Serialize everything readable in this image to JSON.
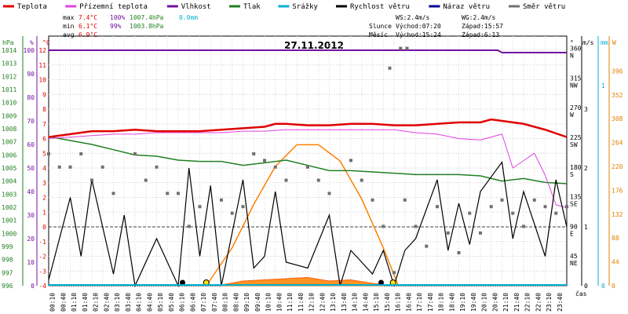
{
  "chart_data": {
    "type": "line",
    "title": "27.11.2012",
    "legend": [
      {
        "name": "Teplota",
        "color": "#e00000"
      },
      {
        "name": "Přízemní teplota",
        "color": "#e040e0"
      },
      {
        "name": "Vlhkost",
        "color": "#7010a0"
      },
      {
        "name": "Tlak",
        "color": "#208020"
      },
      {
        "name": "Srážky",
        "color": "#00b0d0"
      },
      {
        "name": "Rychlost větru",
        "color": "#000000"
      },
      {
        "name": "Náraz větru",
        "color": "#000090"
      },
      {
        "name": "Směr větru",
        "color": "#707070"
      }
    ],
    "stats": {
      "max": {
        "label": "max",
        "temp": "7.4°C",
        "hum": "100%",
        "press": "1007.4hPa",
        "rain": "0.0mm"
      },
      "min": {
        "label": "min",
        "temp": "6.1°C",
        "hum": "99%",
        "press": "1003.8hPa"
      },
      "avg": {
        "label": "avg",
        "temp": "6.9°C"
      }
    },
    "wind_info": {
      "ws": "WS:2.4m/s",
      "wg": "WG:2.4m/s"
    },
    "sun": {
      "label": "Slunce",
      "rise": "Východ:07:20",
      "set": "Západ:15:57"
    },
    "moon": {
      "label": "Měsíc",
      "rise": "Východ:15:24",
      "set": "Západ:6:13"
    },
    "axes": {
      "hpa_label": "hPa",
      "pct_label": "%",
      "c_label": "°C",
      "deg_label": "°",
      "ms_label": "m/s",
      "mm_label": "mm",
      "w_label": "W",
      "x_label": "čas",
      "hpa_ticks": [
        "996",
        "997",
        "998",
        "999",
        "1000",
        "1001",
        "1002",
        "1003",
        "1004",
        "1005",
        "1006",
        "1007",
        "1008",
        "1009",
        "1010",
        "1011",
        "1012",
        "1013",
        "1014"
      ],
      "pct_ticks": [
        "0",
        "10",
        "20",
        "30",
        "40",
        "50",
        "60",
        "70",
        "80",
        "90",
        "100"
      ],
      "c_ticks": [
        "-4",
        "-3",
        "-2",
        "-1",
        "0",
        "1",
        "2",
        "3",
        "4",
        "5",
        "6",
        "7",
        "8",
        "9",
        "10",
        "11",
        "12"
      ],
      "dir_ticks": [
        {
          "v": "360",
          "d": "N"
        },
        {
          "v": "315",
          "d": "NW"
        },
        {
          "v": "270",
          "d": "W"
        },
        {
          "v": "225",
          "d": "SW"
        },
        {
          "v": "180",
          "d": "S"
        },
        {
          "v": "135",
          "d": "SE"
        },
        {
          "v": "90",
          "d": "E"
        },
        {
          "v": "45",
          "d": "NE"
        }
      ],
      "ms_ticks": [
        "0",
        "1",
        "2",
        "3"
      ],
      "mm_ticks": [
        "0",
        "1"
      ],
      "w_ticks": [
        "0",
        "44",
        "88",
        "132",
        "176",
        "220",
        "264",
        "308",
        "352",
        "396"
      ],
      "x_ticks": [
        "00:10",
        "00:40",
        "01:10",
        "01:40",
        "02:10",
        "02:40",
        "03:10",
        "03:40",
        "04:10",
        "04:40",
        "05:10",
        "05:40",
        "06:10",
        "06:40",
        "07:10",
        "07:40",
        "08:10",
        "08:40",
        "09:10",
        "09:40",
        "10:10",
        "10:40",
        "11:10",
        "11:40",
        "12:10",
        "12:40",
        "13:10",
        "13:40",
        "14:10",
        "14:40",
        "15:10",
        "15:40",
        "16:10",
        "16:40",
        "17:10",
        "17:40",
        "18:10",
        "18:40",
        "19:10",
        "19:40",
        "20:10",
        "20:40",
        "21:10",
        "21:40",
        "22:10",
        "22:40",
        "23:10",
        "23:40"
      ]
    },
    "ranges": {
      "hours": [
        0,
        24
      ],
      "temp_c": [
        -4,
        12
      ],
      "humidity_pct": [
        0,
        100
      ],
      "pressure_hpa": [
        996,
        1014
      ],
      "wind_dir_deg": [
        0,
        400
      ],
      "wind_ms": [
        0,
        4
      ],
      "solar_w": [
        0,
        440
      ]
    },
    "series": {
      "temperature": [
        [
          0,
          6.1
        ],
        [
          0.5,
          6.2
        ],
        [
          1,
          6.3
        ],
        [
          1.5,
          6.4
        ],
        [
          2,
          6.5
        ],
        [
          3,
          6.5
        ],
        [
          4,
          6.6
        ],
        [
          5,
          6.5
        ],
        [
          6,
          6.5
        ],
        [
          7,
          6.5
        ],
        [
          8,
          6.6
        ],
        [
          9,
          6.7
        ],
        [
          10,
          6.8
        ],
        [
          10.5,
          7.0
        ],
        [
          11,
          7.0
        ],
        [
          12,
          6.9
        ],
        [
          13,
          6.9
        ],
        [
          14,
          7.0
        ],
        [
          15,
          7.0
        ],
        [
          16,
          6.9
        ],
        [
          17,
          6.9
        ],
        [
          18,
          7.0
        ],
        [
          19,
          7.1
        ],
        [
          20,
          7.1
        ],
        [
          20.5,
          7.3
        ],
        [
          21,
          7.2
        ],
        [
          22,
          7.0
        ],
        [
          23,
          6.6
        ],
        [
          24,
          6.1
        ]
      ],
      "ground_temp": [
        [
          0,
          6.0
        ],
        [
          1,
          6.1
        ],
        [
          2,
          6.2
        ],
        [
          3,
          6.3
        ],
        [
          4,
          6.3
        ],
        [
          5,
          6.4
        ],
        [
          6,
          6.4
        ],
        [
          7,
          6.4
        ],
        [
          8,
          6.4
        ],
        [
          9,
          6.5
        ],
        [
          10,
          6.5
        ],
        [
          11,
          6.6
        ],
        [
          12,
          6.6
        ],
        [
          13,
          6.6
        ],
        [
          14,
          6.6
        ],
        [
          15,
          6.6
        ],
        [
          16,
          6.6
        ],
        [
          17,
          6.4
        ],
        [
          18,
          6.3
        ],
        [
          19,
          6.0
        ],
        [
          20,
          5.9
        ],
        [
          21,
          6.3
        ],
        [
          21.5,
          4.0
        ],
        [
          22,
          4.5
        ],
        [
          22.5,
          5.0
        ],
        [
          23,
          3.5
        ],
        [
          23.5,
          1.5
        ],
        [
          24,
          1.3
        ]
      ],
      "humidity": [
        [
          0,
          100
        ],
        [
          20.8,
          100
        ],
        [
          21,
          99
        ],
        [
          24,
          99
        ]
      ],
      "pressure": [
        [
          0,
          1007.4
        ],
        [
          1,
          1007.1
        ],
        [
          2,
          1006.8
        ],
        [
          3,
          1006.4
        ],
        [
          4,
          1006.0
        ],
        [
          5,
          1005.9
        ],
        [
          6,
          1005.6
        ],
        [
          7,
          1005.5
        ],
        [
          8,
          1005.5
        ],
        [
          9,
          1005.2
        ],
        [
          10,
          1005.4
        ],
        [
          11,
          1005.6
        ],
        [
          12,
          1005.2
        ],
        [
          13,
          1004.8
        ],
        [
          14,
          1004.8
        ],
        [
          15,
          1004.7
        ],
        [
          16,
          1004.6
        ],
        [
          17,
          1004.5
        ],
        [
          18,
          1004.5
        ],
        [
          19,
          1004.5
        ],
        [
          20,
          1004.4
        ],
        [
          21,
          1004.0
        ],
        [
          22,
          1004.2
        ],
        [
          23,
          1003.9
        ],
        [
          24,
          1003.8
        ]
      ],
      "wind_speed": [
        [
          0,
          0.1
        ],
        [
          1,
          1.5
        ],
        [
          1.5,
          0.5
        ],
        [
          2,
          1.8
        ],
        [
          3,
          0.2
        ],
        [
          3.5,
          1.2
        ],
        [
          4,
          0
        ],
        [
          5,
          0.8
        ],
        [
          6,
          0
        ],
        [
          6.5,
          2.0
        ],
        [
          7,
          0.5
        ],
        [
          7.5,
          1.7
        ],
        [
          8,
          0
        ],
        [
          9,
          1.8
        ],
        [
          9.5,
          0.3
        ],
        [
          10,
          0.5
        ],
        [
          10.5,
          1.6
        ],
        [
          11,
          0.4
        ],
        [
          12,
          0.3
        ],
        [
          13,
          1.2
        ],
        [
          13.5,
          0
        ],
        [
          14,
          0.6
        ],
        [
          15,
          0.2
        ],
        [
          15.5,
          0.6
        ],
        [
          16,
          0
        ],
        [
          16.5,
          0.6
        ],
        [
          17,
          0.8
        ],
        [
          18,
          1.8
        ],
        [
          18.5,
          0.6
        ],
        [
          19,
          1.4
        ],
        [
          19.5,
          0.7
        ],
        [
          20,
          1.6
        ],
        [
          21,
          2.1
        ],
        [
          21.5,
          0.8
        ],
        [
          22,
          1.6
        ],
        [
          23,
          0.5
        ],
        [
          23.5,
          1.8
        ],
        [
          24,
          1.0
        ]
      ],
      "wind_dir": [
        [
          0,
          200
        ],
        [
          0.5,
          180
        ],
        [
          1,
          180
        ],
        [
          1.5,
          200
        ],
        [
          2,
          160
        ],
        [
          2.5,
          180
        ],
        [
          3,
          140
        ],
        [
          4,
          200
        ],
        [
          4.5,
          160
        ],
        [
          5,
          180
        ],
        [
          5.5,
          140
        ],
        [
          6,
          140
        ],
        [
          6.5,
          90
        ],
        [
          7,
          120
        ],
        [
          8,
          130
        ],
        [
          8.5,
          110
        ],
        [
          9,
          120
        ],
        [
          9.5,
          200
        ],
        [
          10,
          190
        ],
        [
          10.5,
          180
        ],
        [
          11,
          160
        ],
        [
          12,
          180
        ],
        [
          12.5,
          160
        ],
        [
          13,
          140
        ],
        [
          14,
          190
        ],
        [
          14.5,
          160
        ],
        [
          15,
          130
        ],
        [
          15.5,
          90
        ],
        [
          16,
          20
        ],
        [
          16.5,
          130
        ],
        [
          17,
          90
        ],
        [
          17.5,
          60
        ],
        [
          18,
          120
        ],
        [
          18.5,
          80
        ],
        [
          19,
          50
        ],
        [
          19.5,
          110
        ],
        [
          20,
          80
        ],
        [
          20.5,
          120
        ],
        [
          21,
          130
        ],
        [
          21.5,
          110
        ],
        [
          22,
          90
        ],
        [
          22.5,
          130
        ],
        [
          23,
          120
        ],
        [
          23.5,
          110
        ],
        [
          24,
          120
        ]
      ],
      "wind_dir_special": [
        [
          15.8,
          330
        ],
        [
          16.3,
          360
        ],
        [
          16.6,
          360
        ]
      ],
      "solar": [
        [
          7.3,
          0
        ],
        [
          8.5,
          70
        ],
        [
          9.5,
          150
        ],
        [
          10.5,
          220
        ],
        [
          11.5,
          260
        ],
        [
          12.5,
          260
        ],
        [
          13.5,
          230
        ],
        [
          14.5,
          160
        ],
        [
          15.5,
          70
        ],
        [
          16.2,
          0
        ]
      ],
      "rain": [
        [
          8,
          0.003
        ],
        [
          9,
          0.02
        ],
        [
          10,
          0.025
        ],
        [
          11,
          0.03
        ],
        [
          12,
          0.035
        ],
        [
          13,
          0.02
        ],
        [
          14,
          0.025
        ],
        [
          15,
          0.01
        ],
        [
          15.5,
          0.005
        ]
      ]
    },
    "markers": {
      "moonset": 6.2,
      "sunrise": 7.3,
      "moonrise": 15.4,
      "sunset": 15.95
    }
  }
}
